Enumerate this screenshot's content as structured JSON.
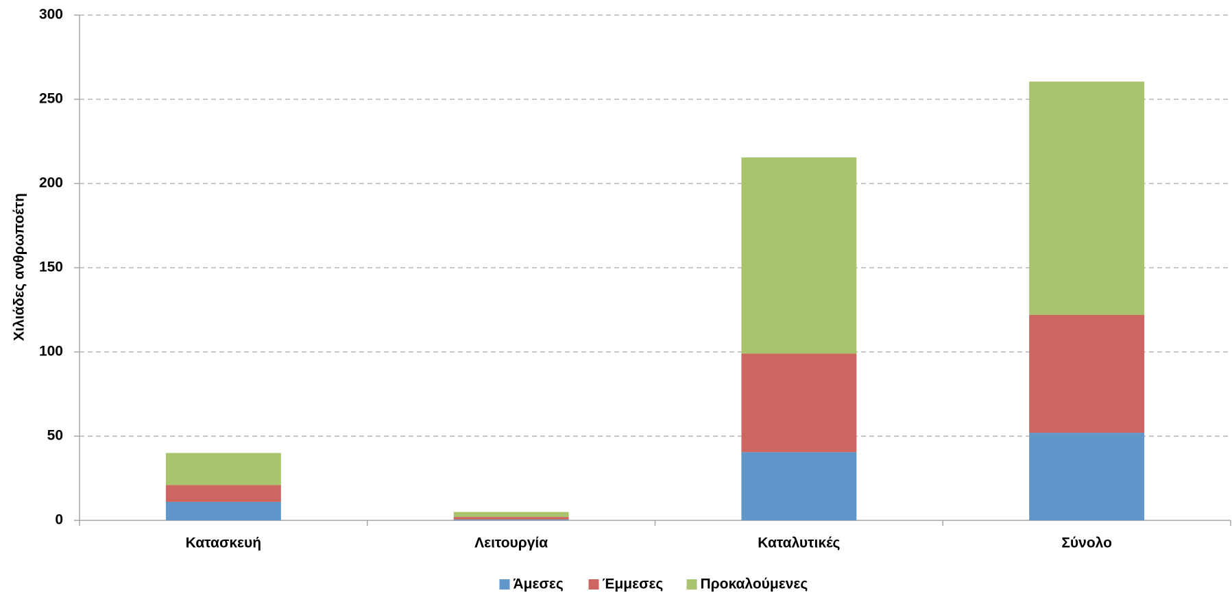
{
  "chart_data": {
    "type": "stacked_bar",
    "y_label": "Χιλιάδες ανθρωποέτη",
    "categories": [
      "Κατασκευή",
      "Λειτουργία",
      "Καταλυτικές",
      "Σύνολο"
    ],
    "series": [
      {
        "name": "Άμεσες",
        "color": "#6096c9",
        "values": [
          11,
          0.5,
          40.5,
          52
        ]
      },
      {
        "name": "Έμμεσες",
        "color": "#cd6660",
        "values": [
          10,
          1.5,
          58.5,
          70
        ]
      },
      {
        "name": "Προκαλούμενες",
        "color": "#a9c46c",
        "values": [
          19,
          3,
          116.5,
          138.5
        ]
      }
    ],
    "ylim": [
      0,
      300
    ],
    "yticks": [
      0,
      50,
      100,
      150,
      200,
      250,
      300
    ],
    "grid": true,
    "legend": "bottom"
  }
}
